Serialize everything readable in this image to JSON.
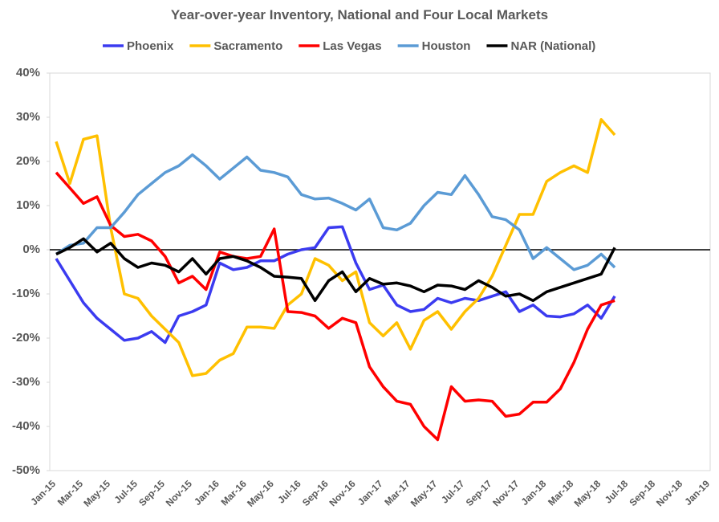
{
  "chart_data": {
    "type": "line",
    "title": "Year-over-year Inventory, National and Four Local Markets",
    "categories": [
      "Jan-15",
      null,
      "Mar-15",
      null,
      "May-15",
      null,
      "Jul-15",
      null,
      "Sep-15",
      null,
      "Nov-15",
      null,
      "Jan-16",
      null,
      "Mar-16",
      null,
      "May-16",
      null,
      "Jul-16",
      null,
      "Sep-16",
      null,
      "Nov-16",
      null,
      "Jan-17",
      null,
      "Mar-17",
      null,
      "May-17",
      null,
      "Jul-17",
      null,
      "Sep-17",
      null,
      "Nov-17",
      null,
      "Jan-18",
      null,
      "Mar-18",
      null,
      "May-18",
      null,
      "Jul-18",
      null,
      "Sep-18",
      null,
      "Nov-18",
      null,
      "Jan-19"
    ],
    "series": [
      {
        "name": "Phoenix",
        "color": "#3b3bf0",
        "values": [
          -2,
          -7,
          -12,
          -15.5,
          -18,
          -20.5,
          -20,
          -18.5,
          -21,
          -15,
          -14,
          -12.5,
          -3,
          -4.5,
          -4,
          -2.5,
          -2.5,
          -1,
          0,
          0.5,
          5,
          5.2,
          -3,
          -9,
          -8,
          -12.5,
          -14,
          -13.5,
          -11,
          -12,
          -11,
          -11.5,
          -10.5,
          -9.5,
          -14,
          -12.5,
          -15,
          -15.2,
          -14.5,
          -12.5,
          -15.5,
          -10.5,
          null,
          null,
          null,
          null,
          null,
          null,
          null
        ]
      },
      {
        "name": "Sacramento",
        "color": "#ffc000",
        "values": [
          24.5,
          15,
          25,
          25.8,
          5,
          -10,
          -11,
          -15,
          -18,
          -21,
          -28.5,
          -28,
          -25,
          -23.5,
          -17.5,
          -17.5,
          -17.8,
          -12.5,
          -10,
          -2,
          -3.5,
          -7,
          -5,
          -16.5,
          -19.5,
          -16.5,
          -22.5,
          -16,
          -14,
          -18,
          -14,
          -11,
          -6,
          1,
          8,
          8,
          15.5,
          17.5,
          19,
          17.5,
          29.5,
          26,
          null,
          null,
          null,
          null,
          null,
          null,
          null
        ]
      },
      {
        "name": "Las Vegas",
        "color": "#ff0000",
        "values": [
          17.5,
          14,
          10.5,
          12,
          5.5,
          3,
          3.5,
          2,
          -1.5,
          -7.5,
          -6,
          -9,
          -0.5,
          -1.5,
          -2,
          -1.5,
          4.7,
          -14,
          -14.2,
          -15,
          -17.8,
          -15.5,
          -16.5,
          -26.5,
          -31,
          -34.3,
          -35,
          -40,
          -43,
          -31,
          -34.3,
          -34,
          -34.3,
          -37.7,
          -37.2,
          -34.5,
          -34.5,
          -31.5,
          -25.5,
          -18,
          -12.5,
          -11.5,
          null,
          null,
          null,
          null,
          null,
          null,
          null
        ]
      },
      {
        "name": "Houston",
        "color": "#5b9bd5",
        "values": [
          -1,
          1,
          1.5,
          5,
          5,
          8.5,
          12.5,
          15,
          17.5,
          19,
          21.5,
          19,
          16,
          18.5,
          21,
          18,
          17.5,
          16.5,
          12.5,
          11.5,
          11.7,
          10.5,
          9,
          11.5,
          5,
          4.5,
          6,
          10,
          13,
          12.5,
          16.8,
          12.5,
          7.5,
          6.8,
          4.5,
          -2,
          0.5,
          -2,
          -4.5,
          -3.5,
          -1,
          -4,
          null,
          null,
          null,
          null,
          null,
          null,
          null
        ]
      },
      {
        "name": "NAR (National)",
        "color": "#000000",
        "values": [
          -1,
          0.5,
          2.5,
          -0.5,
          1.5,
          -2,
          -4,
          -3,
          -3.5,
          -5,
          -2,
          -5.5,
          -2,
          -1.5,
          -2.5,
          -4,
          -6,
          -6.2,
          -6.5,
          -11.5,
          -7,
          -5,
          -9.5,
          -6.5,
          -7.8,
          -7.5,
          -8.2,
          -9.5,
          -8,
          -8.2,
          -9,
          -7,
          -8.5,
          -10.5,
          -10,
          -11.5,
          -9.5,
          -8.5,
          -7.5,
          -6.5,
          -5.5,
          0.5,
          null,
          null,
          null,
          null,
          null,
          null,
          null
        ]
      }
    ],
    "ylim": [
      -50,
      40
    ],
    "yticks": [
      {
        "value": -50,
        "label": "-50%"
      },
      {
        "value": -40,
        "label": "-40%"
      },
      {
        "value": -30,
        "label": "-30%"
      },
      {
        "value": -20,
        "label": "-20%"
      },
      {
        "value": -10,
        "label": "-10%"
      },
      {
        "value": 0,
        "label": "0%"
      },
      {
        "value": 10,
        "label": "10%"
      },
      {
        "value": 20,
        "label": "20%"
      },
      {
        "value": 30,
        "label": "30%"
      },
      {
        "value": 40,
        "label": "40%"
      }
    ],
    "grid": false
  }
}
